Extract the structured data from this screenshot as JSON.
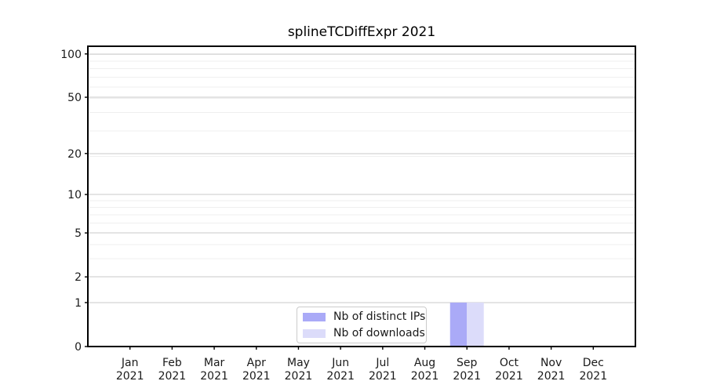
{
  "chart_data": {
    "type": "bar",
    "title": "splineTCDiffExpr 2021",
    "x_labels": [
      {
        "month": "Jan",
        "year": "2021"
      },
      {
        "month": "Feb",
        "year": "2021"
      },
      {
        "month": "Mar",
        "year": "2021"
      },
      {
        "month": "Apr",
        "year": "2021"
      },
      {
        "month": "May",
        "year": "2021"
      },
      {
        "month": "Jun",
        "year": "2021"
      },
      {
        "month": "Jul",
        "year": "2021"
      },
      {
        "month": "Aug",
        "year": "2021"
      },
      {
        "month": "Sep",
        "year": "2021"
      },
      {
        "month": "Oct",
        "year": "2021"
      },
      {
        "month": "Nov",
        "year": "2021"
      },
      {
        "month": "Dec",
        "year": "2021"
      }
    ],
    "series": [
      {
        "name": "Nb of distinct IPs",
        "color": "#aaaaf7",
        "values": [
          0,
          0,
          0,
          0,
          0,
          0,
          0,
          0,
          1,
          0,
          0,
          0
        ]
      },
      {
        "name": "Nb of downloads",
        "color": "#dcdcfa",
        "values": [
          0,
          0,
          0,
          0,
          0,
          0,
          0,
          0,
          1,
          0,
          0,
          0
        ]
      }
    ],
    "y_ticks": [
      0,
      1,
      2,
      5,
      10,
      20,
      50,
      100
    ],
    "y_axis_scale": "log10(x+1)",
    "y_max": 113,
    "y_minor_gridlines": [
      3,
      4,
      6,
      7,
      8,
      9,
      19,
      29,
      39,
      49,
      59,
      69,
      79,
      89,
      99
    ],
    "grid": {
      "major_color": "#c8c8c8",
      "minor_color": "#efefef"
    },
    "axis_color": "#000000",
    "text_color": "#1a1a1a",
    "legend_position": "lower center"
  }
}
